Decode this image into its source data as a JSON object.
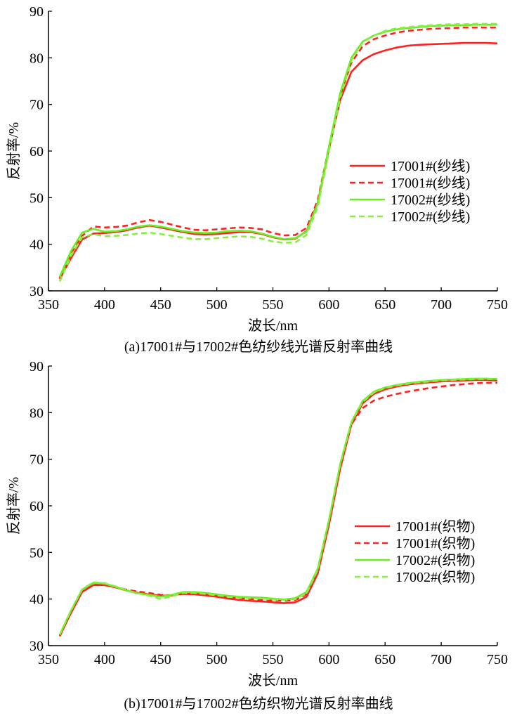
{
  "chart_data": [
    {
      "type": "line",
      "panel": "(a)",
      "caption": "(a)17001#与17002#色纺纱线光谱反射率曲线",
      "xlabel": "波长/nm",
      "ylabel": "反射率/%",
      "xlim": [
        350,
        750
      ],
      "ylim": [
        30,
        90
      ],
      "xticks": [
        350,
        400,
        450,
        500,
        550,
        600,
        650,
        700,
        750
      ],
      "yticks": [
        30,
        40,
        50,
        60,
        70,
        80,
        90
      ],
      "grid": false,
      "legend_position": "right-middle",
      "x": [
        360,
        370,
        380,
        390,
        400,
        410,
        420,
        430,
        440,
        450,
        460,
        470,
        480,
        490,
        500,
        510,
        520,
        530,
        540,
        550,
        560,
        570,
        580,
        590,
        600,
        610,
        620,
        630,
        640,
        650,
        660,
        670,
        680,
        690,
        700,
        710,
        720,
        730,
        740,
        750
      ],
      "series": [
        {
          "name": "17001#(纱线)",
          "color": "#ff2020",
          "dash": "solid",
          "values": [
            32.5,
            37.0,
            41.0,
            42.3,
            42.4,
            42.6,
            43.0,
            43.6,
            44.0,
            43.6,
            43.1,
            42.6,
            42.2,
            42.1,
            42.2,
            42.4,
            42.6,
            42.6,
            42.2,
            41.5,
            41.0,
            41.2,
            42.8,
            49.0,
            60.5,
            71.0,
            77.0,
            79.5,
            80.8,
            81.6,
            82.2,
            82.6,
            82.8,
            82.9,
            83.0,
            83.1,
            83.2,
            83.2,
            83.2,
            83.1
          ]
        },
        {
          "name": "17001#(纱线)",
          "color": "#ff2020",
          "dash": "dashed",
          "values": [
            32.8,
            38.0,
            41.8,
            43.8,
            43.6,
            43.7,
            44.0,
            44.7,
            45.2,
            44.8,
            44.2,
            43.6,
            43.1,
            43.0,
            43.2,
            43.4,
            43.6,
            43.5,
            43.2,
            42.4,
            41.9,
            42.0,
            43.5,
            49.5,
            61.0,
            72.0,
            79.0,
            82.5,
            84.0,
            84.8,
            85.4,
            85.8,
            86.0,
            86.2,
            86.3,
            86.4,
            86.5,
            86.5,
            86.5,
            86.5
          ]
        },
        {
          "name": "17002#(纱线)",
          "color": "#66ee22",
          "dash": "solid",
          "values": [
            33.0,
            38.5,
            42.5,
            43.3,
            42.7,
            42.8,
            43.2,
            43.8,
            44.1,
            43.8,
            43.3,
            42.8,
            42.5,
            42.4,
            42.5,
            42.8,
            42.9,
            42.8,
            42.3,
            41.6,
            41.1,
            41.3,
            42.7,
            48.8,
            61.0,
            72.5,
            80.0,
            83.5,
            84.8,
            85.6,
            86.1,
            86.4,
            86.6,
            86.8,
            86.9,
            87.0,
            87.0,
            87.1,
            87.1,
            87.1
          ]
        },
        {
          "name": "17002#(纱线)",
          "color": "#88ee44",
          "dash": "dashed",
          "values": [
            32.0,
            37.5,
            41.5,
            42.2,
            41.7,
            41.8,
            42.0,
            42.3,
            42.5,
            42.2,
            41.8,
            41.4,
            41.1,
            41.1,
            41.3,
            41.5,
            41.7,
            41.6,
            41.2,
            40.6,
            40.3,
            40.4,
            42.0,
            48.0,
            60.0,
            71.5,
            79.5,
            83.3,
            84.8,
            85.8,
            86.3,
            86.6,
            86.8,
            87.0,
            87.1,
            87.2,
            87.2,
            87.3,
            87.3,
            87.3
          ]
        }
      ]
    },
    {
      "type": "line",
      "panel": "(b)",
      "caption": "(b)17001#与17002#色纺织物光谱反射率曲线",
      "xlabel": "波长/nm",
      "ylabel": "反射率/%",
      "xlim": [
        350,
        750
      ],
      "ylim": [
        30,
        90
      ],
      "xticks": [
        350,
        400,
        450,
        500,
        550,
        600,
        650,
        700,
        750
      ],
      "yticks": [
        30,
        40,
        50,
        60,
        70,
        80,
        90
      ],
      "grid": false,
      "legend_position": "right-middle",
      "x": [
        360,
        370,
        380,
        390,
        400,
        410,
        420,
        430,
        440,
        450,
        460,
        470,
        480,
        490,
        500,
        510,
        520,
        530,
        540,
        550,
        560,
        570,
        580,
        590,
        600,
        610,
        620,
        630,
        640,
        650,
        660,
        670,
        680,
        690,
        700,
        710,
        720,
        730,
        740,
        750
      ],
      "series": [
        {
          "name": "17001#(织物)",
          "color": "#ff2020",
          "dash": "solid",
          "values": [
            32.0,
            37.0,
            41.5,
            43.0,
            43.0,
            42.5,
            41.8,
            41.3,
            41.0,
            40.7,
            40.8,
            41.1,
            41.0,
            40.8,
            40.5,
            40.1,
            39.8,
            39.6,
            39.5,
            39.3,
            39.1,
            39.3,
            40.5,
            45.5,
            56.0,
            68.0,
            77.5,
            82.0,
            84.0,
            85.0,
            85.6,
            86.0,
            86.3,
            86.5,
            86.7,
            86.8,
            86.9,
            87.0,
            87.0,
            86.9
          ]
        },
        {
          "name": "17001#(织物)",
          "color": "#ff2020",
          "dash": "dashed",
          "values": [
            32.2,
            37.2,
            41.8,
            43.1,
            43.0,
            42.6,
            42.0,
            41.6,
            41.3,
            40.9,
            40.8,
            41.2,
            41.2,
            41.0,
            40.7,
            40.4,
            40.2,
            40.0,
            39.8,
            39.7,
            39.6,
            39.8,
            41.0,
            46.0,
            56.5,
            68.5,
            77.5,
            81.0,
            82.6,
            83.4,
            84.0,
            84.5,
            84.9,
            85.3,
            85.6,
            85.9,
            86.1,
            86.3,
            86.4,
            86.4
          ]
        },
        {
          "name": "17002#(织物)",
          "color": "#66ee22",
          "dash": "solid",
          "values": [
            32.3,
            37.5,
            42.0,
            43.5,
            43.3,
            42.6,
            41.8,
            41.2,
            40.9,
            40.5,
            40.9,
            41.5,
            41.5,
            41.3,
            41.0,
            40.7,
            40.5,
            40.4,
            40.3,
            40.1,
            39.9,
            40.2,
            41.5,
            46.5,
            57.0,
            69.0,
            78.0,
            82.5,
            84.5,
            85.4,
            85.9,
            86.3,
            86.6,
            86.8,
            87.0,
            87.1,
            87.2,
            87.3,
            87.3,
            87.2
          ]
        },
        {
          "name": "17002#(织物)",
          "color": "#88ee44",
          "dash": "dashed",
          "values": [
            32.4,
            37.5,
            42.1,
            43.6,
            43.4,
            42.7,
            41.9,
            41.2,
            40.7,
            40.0,
            40.6,
            41.3,
            41.3,
            41.1,
            40.8,
            40.5,
            40.3,
            40.2,
            40.1,
            39.9,
            39.8,
            40.0,
            41.2,
            46.3,
            57.0,
            69.0,
            78.0,
            82.3,
            84.3,
            85.3,
            85.8,
            86.2,
            86.5,
            86.7,
            86.9,
            87.0,
            87.1,
            87.2,
            87.2,
            87.2
          ]
        }
      ]
    }
  ]
}
